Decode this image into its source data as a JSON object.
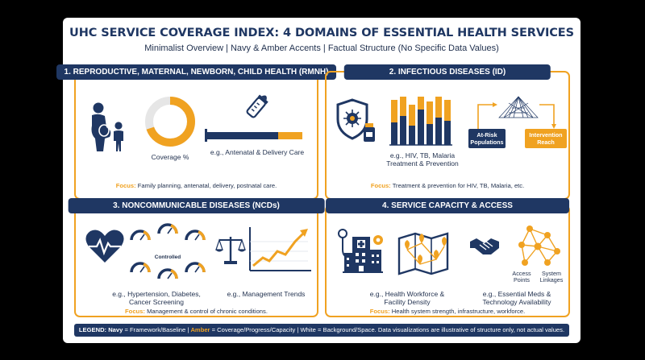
{
  "header": {
    "title": "UHC SERVICE COVERAGE INDEX: 4 DOMAINS OF ESSENTIAL HEALTH SERVICES",
    "subtitle": "Minimalist Overview | Navy & Amber Accents | Factual Structure (No Specific Data Values)"
  },
  "colors": {
    "navy": "#1f3763",
    "amber": "#f0a221",
    "white": "#ffffff"
  },
  "panels": [
    {
      "heading": "1. REPRODUCTIVE, MATERNAL, NEWBORN, CHILD HEALTH (RMNH)",
      "icons": [
        "mother-child-icon",
        "donut-gauge-icon",
        "baby-bottle-icon",
        "progress-bar-icon"
      ],
      "caption_left": "Coverage %",
      "caption_right": "e.g., Antenatal & Delivery Care",
      "focus_label": "Focus:",
      "focus_text": "Family planning, antenatal, delivery, postnatal care."
    },
    {
      "heading": "2. INFECTIOUS DISEASES (ID)",
      "icons": [
        "shield-virus-icon",
        "pill-bottle-icon",
        "bar-chart-icon",
        "funnel-net-icon"
      ],
      "caption": "e.g., HIV, TB, Malaria Treatment & Prevention",
      "box_left": "At-Risk Populations",
      "box_right": "Intervention Reach",
      "focus_label": "Focus:",
      "focus_text": "Treatment & prevention for HIV, TB, Malaria, etc."
    },
    {
      "heading": "3. NONCOMMUNICABLE DISEASES (NCDs)",
      "icons": [
        "heart-pulse-icon",
        "gauge-icon",
        "scales-icon",
        "trend-line-icon"
      ],
      "gauge_label": "Controlled",
      "caption_left": "e.g., Hypertension, Diabetes, Cancer Screening",
      "caption_right": "e.g., Management Trends",
      "focus_label": "Focus:",
      "focus_text": "Management & control of chronic conditions."
    },
    {
      "heading": "4. SERVICE CAPACITY & ACCESS",
      "icons": [
        "hospital-icon",
        "stethoscope-icon",
        "map-pins-icon",
        "handshake-icon",
        "network-icon"
      ],
      "network_left": "Access Points",
      "network_right": "System Linkages",
      "caption_left": "e.g., Health Workforce & Facility Density",
      "caption_right": "e.g., Essential Meds & Technology Availability",
      "focus_label": "Focus:",
      "focus_text": "Health system strength, infrastructure, workforce."
    }
  ],
  "legend": {
    "prefix": "LEGEND:",
    "navy": "Navy",
    "navy_desc": "= Framework/Baseline |",
    "amber": "Amber",
    "amber_desc": "= Coverage/Progress/Capacity | White = Background/Space. Data visualizations are illustrative of structure only, not actual values."
  }
}
